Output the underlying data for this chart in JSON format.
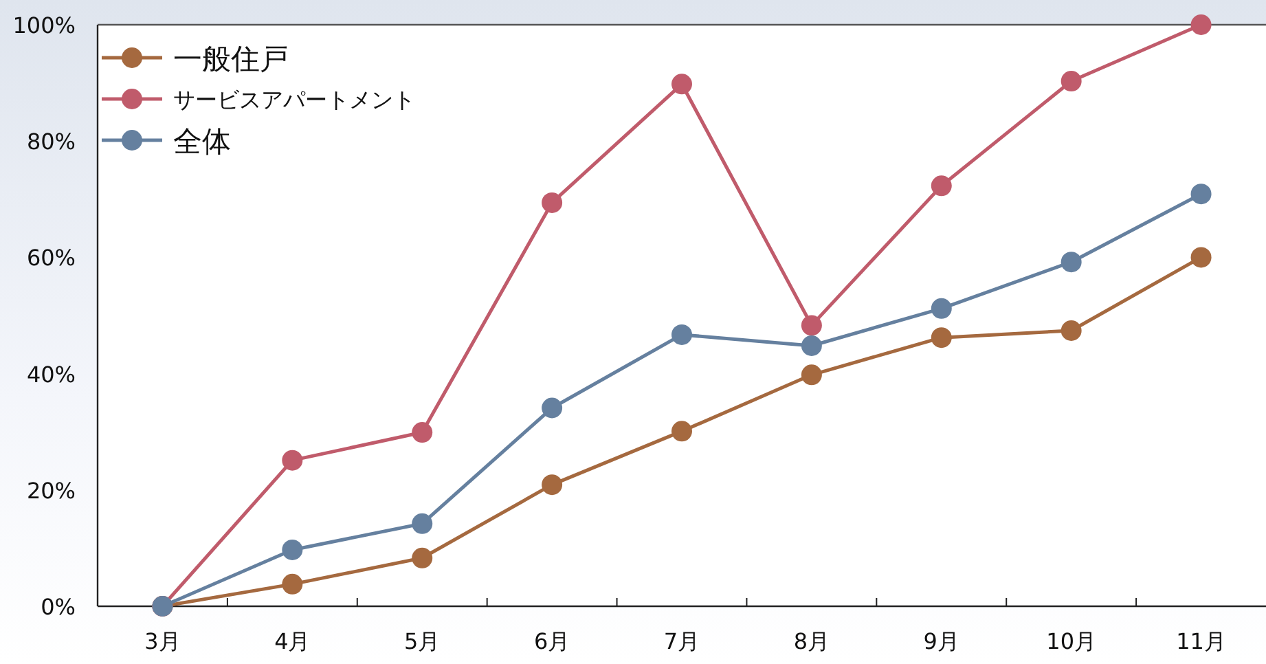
{
  "chart_data": {
    "type": "line",
    "categories": [
      "3月",
      "4月",
      "5月",
      "6月",
      "7月",
      "8月",
      "9月",
      "10月",
      "11月"
    ],
    "series": [
      {
        "name": "一般住戸",
        "color": "#a5693f",
        "values": [
          0,
          3.8,
          8.3,
          20.9,
          30.1,
          39.8,
          46.2,
          47.4,
          60
        ]
      },
      {
        "name": "サービスアパートメント",
        "color": "#c05b6b",
        "values": [
          0,
          25.1,
          29.9,
          69.4,
          89.8,
          48.3,
          72.3,
          90.3,
          100
        ]
      },
      {
        "name": "全体",
        "color": "#65809f",
        "values": [
          0,
          9.7,
          14.2,
          34.1,
          46.7,
          44.8,
          51.2,
          59.2,
          70.9
        ]
      }
    ],
    "ylim": [
      0,
      100
    ],
    "yticks": [
      {
        "value": 0,
        "label": "0%"
      },
      {
        "value": 20,
        "label": "20%"
      },
      {
        "value": 40,
        "label": "40%"
      },
      {
        "value": 60,
        "label": "60%"
      },
      {
        "value": 80,
        "label": "80%"
      },
      {
        "value": 100,
        "label": "100%"
      }
    ],
    "grid": false,
    "legend": "top left",
    "marker": "circle",
    "line_style": "solid"
  }
}
